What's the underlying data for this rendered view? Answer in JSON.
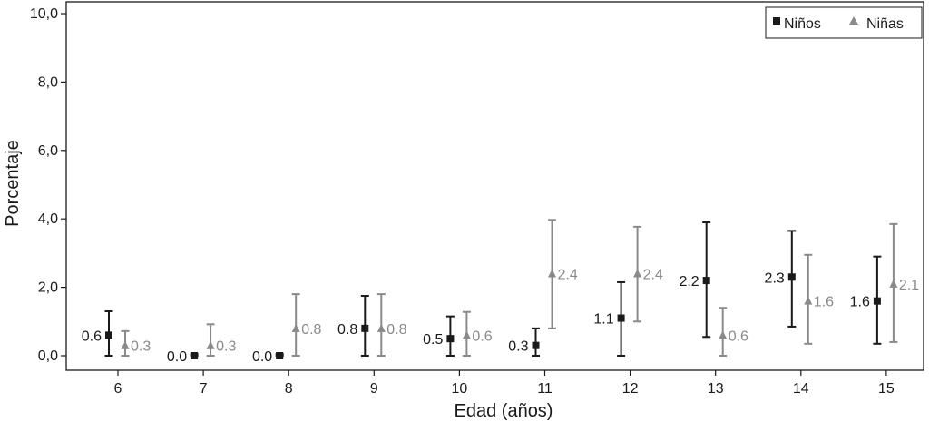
{
  "chart_data": {
    "type": "scatter",
    "title": "",
    "xlabel": "Edad (años)",
    "ylabel": "Porcentaje",
    "categories": [
      "6",
      "7",
      "8",
      "9",
      "10",
      "11",
      "12",
      "13",
      "14",
      "15"
    ],
    "ylim": [
      0,
      10
    ],
    "y_ticks": [
      "0,0",
      "2,0",
      "4,0",
      "6,0",
      "8,0",
      "10,0"
    ],
    "y_tick_values": [
      0,
      2,
      4,
      6,
      8,
      10
    ],
    "grid": false,
    "legend_position": "top-right",
    "series": [
      {
        "name": "Niños",
        "marker": "square",
        "color": "#1a1a1a",
        "values": [
          0.6,
          0.0,
          0.0,
          0.8,
          0.5,
          0.3,
          1.1,
          2.2,
          2.3,
          1.6
        ],
        "labels": [
          "0.6",
          "0.0",
          "0.0",
          "0.8",
          "0.5",
          "0.3",
          "1.1",
          "2.2",
          "2.3",
          "1.6"
        ],
        "lower": [
          0.0,
          0.0,
          0.0,
          0.0,
          0.0,
          0.0,
          0.0,
          0.55,
          0.85,
          0.35
        ],
        "upper": [
          1.3,
          0.05,
          0.05,
          1.75,
          1.15,
          0.8,
          2.15,
          3.9,
          3.65,
          2.9
        ]
      },
      {
        "name": "Niñas",
        "marker": "triangle",
        "color": "#8a8a8a",
        "values": [
          0.3,
          0.3,
          0.8,
          0.8,
          0.6,
          2.4,
          2.4,
          0.6,
          1.6,
          2.1
        ],
        "labels": [
          "0.3",
          "0.3",
          "0.8",
          "0.8",
          "0.6",
          "2.4",
          "2.4",
          "0.6",
          "1.6",
          "2.1"
        ],
        "lower": [
          0.0,
          0.0,
          0.0,
          0.0,
          0.0,
          0.8,
          1.0,
          0.0,
          0.35,
          0.4
        ],
        "upper": [
          0.72,
          0.92,
          1.8,
          1.8,
          1.28,
          3.97,
          3.77,
          1.4,
          2.95,
          3.85
        ]
      }
    ]
  }
}
